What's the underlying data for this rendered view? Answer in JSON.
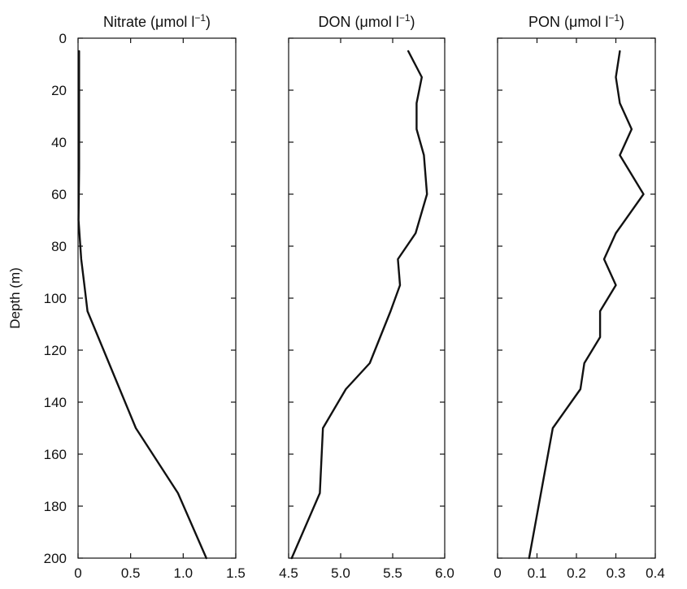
{
  "chart_data": [
    {
      "type": "line",
      "title": "Nitrate (μmol l",
      "title_superscript": "−1",
      "title_close": ")",
      "ylabel": "Depth (m)",
      "xlim": [
        0,
        1.5
      ],
      "ylim": [
        200,
        0
      ],
      "y_inverted": true,
      "xticks": [
        {
          "value": 0,
          "label": "0"
        },
        {
          "value": 0.5,
          "label": "0.5"
        },
        {
          "value": 1.0,
          "label": "1.0"
        },
        {
          "value": 1.5,
          "label": "1.5"
        }
      ],
      "yticks": [
        {
          "value": 0,
          "label": "0"
        },
        {
          "value": 20,
          "label": "20"
        },
        {
          "value": 40,
          "label": "40"
        },
        {
          "value": 60,
          "label": "60"
        },
        {
          "value": 80,
          "label": "80"
        },
        {
          "value": 100,
          "label": "100"
        },
        {
          "value": 120,
          "label": "120"
        },
        {
          "value": 140,
          "label": "140"
        },
        {
          "value": 160,
          "label": "160"
        },
        {
          "value": 180,
          "label": "180"
        },
        {
          "value": 200,
          "label": "200"
        }
      ],
      "series": [
        {
          "x": [
            0.01,
            0.01,
            0.01,
            0.01,
            0.01,
            0.005,
            0.03,
            0.06,
            0.09,
            0.55,
            0.95,
            1.22
          ],
          "y": [
            5,
            15,
            25,
            35,
            50,
            70,
            85,
            95,
            105,
            150,
            175,
            200
          ]
        }
      ],
      "grid": false
    },
    {
      "type": "line",
      "title": "DON (μmol l",
      "title_superscript": "−1",
      "title_close": ")",
      "xlim": [
        4.5,
        6.0
      ],
      "ylim": [
        200,
        0
      ],
      "y_inverted": true,
      "xticks": [
        {
          "value": 4.5,
          "label": "4.5"
        },
        {
          "value": 5.0,
          "label": "5.0"
        },
        {
          "value": 5.5,
          "label": "5.5"
        },
        {
          "value": 6.0,
          "label": "6.0"
        }
      ],
      "series": [
        {
          "x": [
            5.65,
            5.78,
            5.73,
            5.73,
            5.8,
            5.83,
            5.72,
            5.55,
            5.57,
            5.48,
            5.28,
            5.05,
            4.83,
            4.8,
            4.53
          ],
          "y": [
            5,
            15,
            25,
            35,
            45,
            60,
            75,
            85,
            95,
            105,
            125,
            135,
            150,
            175,
            200
          ]
        }
      ],
      "grid": false
    },
    {
      "type": "line",
      "title": "PON (μmol l",
      "title_superscript": "−1",
      "title_close": ")",
      "xlim": [
        0,
        0.4
      ],
      "ylim": [
        200,
        0
      ],
      "y_inverted": true,
      "xticks": [
        {
          "value": 0,
          "label": "0"
        },
        {
          "value": 0.1,
          "label": "0.1"
        },
        {
          "value": 0.2,
          "label": "0.2"
        },
        {
          "value": 0.3,
          "label": "0.3"
        },
        {
          "value": 0.4,
          "label": "0.4"
        }
      ],
      "series": [
        {
          "x": [
            0.31,
            0.3,
            0.31,
            0.34,
            0.31,
            0.37,
            0.3,
            0.27,
            0.3,
            0.26,
            0.26,
            0.22,
            0.21,
            0.14,
            0.08
          ],
          "y": [
            5,
            15,
            25,
            35,
            45,
            60,
            75,
            85,
            95,
            105,
            115,
            125,
            135,
            150,
            200
          ]
        }
      ],
      "grid": false
    }
  ]
}
